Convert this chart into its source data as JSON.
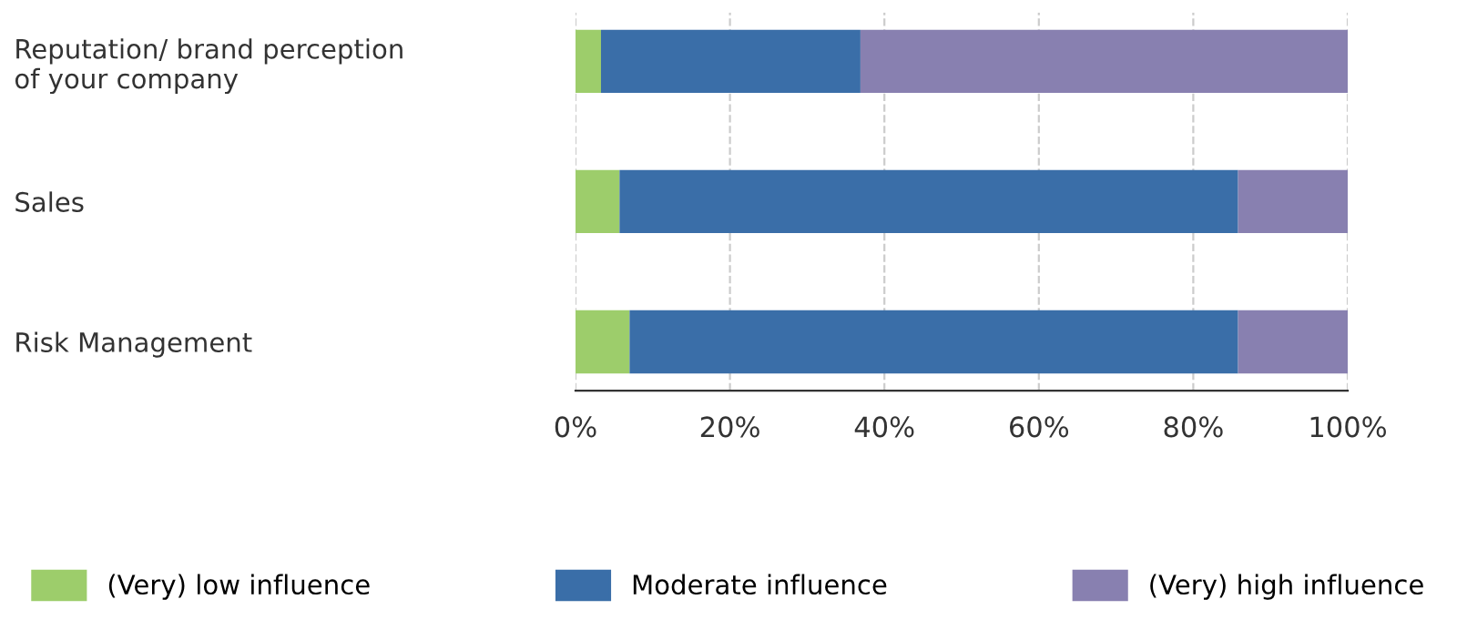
{
  "chart_data": {
    "type": "bar",
    "orientation": "horizontal",
    "stacked": true,
    "categories": [
      "Reputation/ brand perception\nof your company",
      "Sales",
      "Risk Management"
    ],
    "series": [
      {
        "name": "(Very) low influence",
        "color": "#9dcd6b",
        "values": [
          3.3,
          5.7,
          7.0
        ]
      },
      {
        "name": "Moderate influence",
        "color": "#3a6ea8",
        "values": [
          33.6,
          80.1,
          78.8
        ]
      },
      {
        "name": "(Very) high influence",
        "color": "#8880b0",
        "values": [
          63.1,
          14.2,
          14.2
        ]
      }
    ],
    "xlim": [
      0,
      100
    ],
    "xticks": [
      {
        "value": 0,
        "label": "0%"
      },
      {
        "value": 20,
        "label": "20%"
      },
      {
        "value": 40,
        "label": "40%"
      },
      {
        "value": 60,
        "label": "60%"
      },
      {
        "value": 80,
        "label": "80%"
      },
      {
        "value": 100,
        "label": "100%"
      }
    ],
    "grid": "x",
    "legend": "bottom"
  }
}
